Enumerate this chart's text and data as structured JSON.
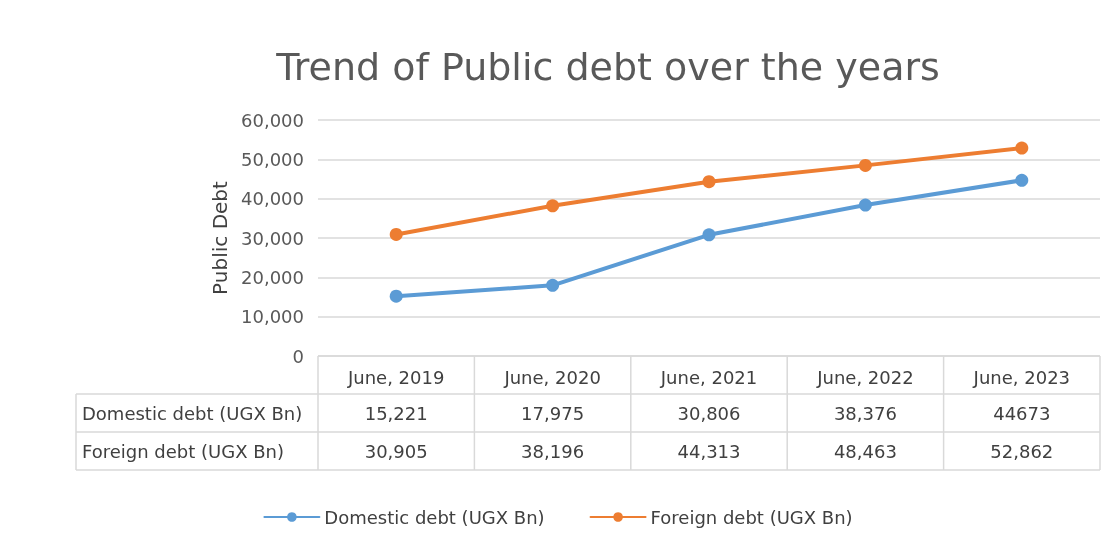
{
  "chart_data": {
    "type": "line",
    "title": "Trend of Public debt over the years",
    "ylabel": "Public Debt",
    "categories": [
      "June, 2019",
      "June, 2020",
      "June, 2021",
      "June, 2022",
      "June, 2023"
    ],
    "series": [
      {
        "name": "Domestic debt (UGX Bn)",
        "color": "#5b9bd5",
        "values": [
          15221,
          17975,
          30806,
          38376,
          44673
        ],
        "value_labels": [
          "15,221",
          "17,975",
          "30,806",
          "38,376",
          "44673"
        ]
      },
      {
        "name": "Foreign debt (UGX Bn)",
        "color": "#ed7d31",
        "values": [
          30905,
          38196,
          44313,
          48463,
          52862
        ],
        "value_labels": [
          "30,905",
          "38,196",
          "44,313",
          "48,463",
          "52,862"
        ]
      }
    ],
    "ylim": [
      0,
      60000
    ],
    "yticks": [
      {
        "value": 0,
        "label": "0"
      },
      {
        "value": 10000,
        "label": "10,000"
      },
      {
        "value": 20000,
        "label": "20,000"
      },
      {
        "value": 30000,
        "label": "30,000"
      },
      {
        "value": 40000,
        "label": "40,000"
      },
      {
        "value": 50000,
        "label": "50,000"
      },
      {
        "value": 60000,
        "label": "60,000"
      }
    ],
    "grid": "y",
    "legend": "bottom",
    "marker": "circle",
    "line_style": "solid"
  }
}
